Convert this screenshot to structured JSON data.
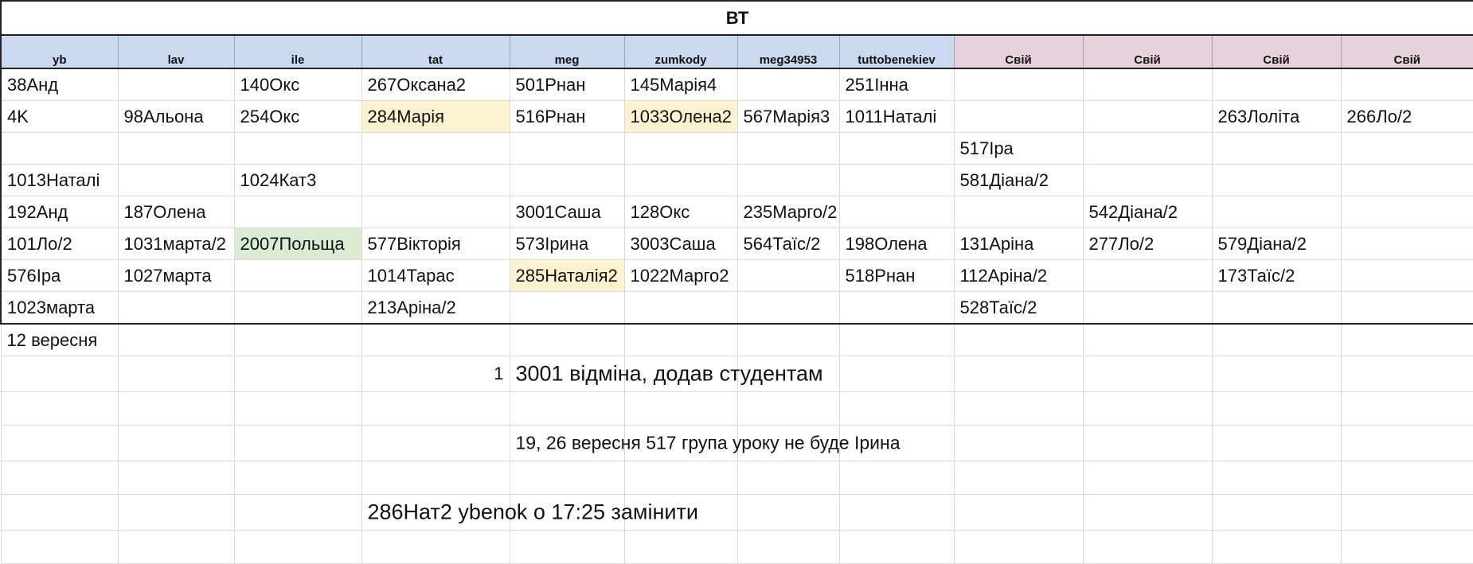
{
  "sheet": {
    "title": "ВТ",
    "columns": [
      "yb",
      "lav",
      "ile",
      "tat",
      "meg",
      "zumkody",
      "meg34953",
      "tuttobenekiev",
      "Свій",
      "Свій",
      "Свій",
      "Свій"
    ],
    "rows": [
      [
        "38Анд",
        "",
        "140Окс",
        "267Оксана2",
        "501Рнан",
        "145Марія4",
        "",
        "251Інна",
        "",
        "",
        "",
        ""
      ],
      [
        "4K",
        "98Альона",
        "254Окс",
        "284Марія",
        "516Рнан",
        "1033Олена2",
        "567Марія3",
        "1011Наталі",
        "",
        "",
        "263Лоліта",
        "266Ло/2"
      ],
      [
        "",
        "",
        "",
        "",
        "",
        "",
        "",
        "",
        "517Іра",
        "",
        "",
        ""
      ],
      [
        "1013Наталі",
        "",
        "1024Кат3",
        "",
        "",
        "",
        "",
        "",
        "581Діана/2",
        "",
        "",
        ""
      ],
      [
        "192Анд",
        "187Олена",
        "",
        "",
        "3001Саша",
        "128Окс",
        "235Марго/2",
        "",
        "",
        "542Діана/2",
        "",
        ""
      ],
      [
        "101Ло/2",
        "1031марта/2",
        "2007Польща",
        "577Вікторія",
        "573Ірина",
        "3003Саша",
        "564Таїс/2",
        "198Олена",
        "131Аріна",
        "277Ло/2",
        "579Діана/2",
        ""
      ],
      [
        "576Іра",
        "1027марта",
        "",
        "1014Тарас",
        "285Наталія2",
        "1022Марго2",
        "",
        "518Рнан",
        "112Аріна/2",
        "",
        "173Таїс/2",
        ""
      ],
      [
        "1023марта",
        "",
        "",
        "213Аріна/2",
        "",
        "",
        "",
        "",
        "528Таїс/2",
        "",
        "",
        ""
      ]
    ],
    "colors": {
      "header_blue": "#cad8f0",
      "header_pink": "#e7d2dc",
      "highlight_yellow": "#fdf2d0",
      "highlight_green": "#dbead3"
    }
  },
  "notes": {
    "date": "12 вересня",
    "number": "1",
    "note1": "3001 відміна, додав студентам",
    "note2": "19, 26 вересня 517 група уроку не буде Ірина",
    "note3": "286Нат2 ybenok  о 17:25 замінити"
  }
}
